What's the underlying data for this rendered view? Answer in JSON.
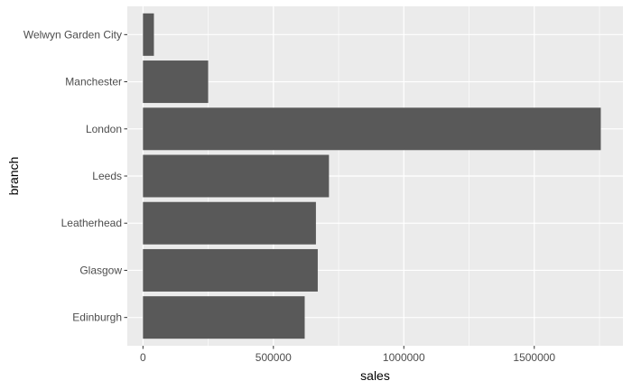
{
  "chart_data": {
    "type": "bar",
    "orientation": "horizontal",
    "categories": [
      "Edinburgh",
      "Glasgow",
      "Leatherhead",
      "Leeds",
      "London",
      "Manchester",
      "Welwyn Garden City"
    ],
    "values": [
      620000,
      670000,
      663000,
      713000,
      1755000,
      250000,
      42000
    ],
    "xlabel": "sales",
    "ylabel": "branch",
    "xlim": [
      -60000,
      1840000
    ],
    "x_ticks": [
      0,
      500000,
      1000000,
      1500000
    ],
    "x_tick_labels": [
      "0",
      "500000",
      "1000000",
      "1500000"
    ],
    "grid": true,
    "legend": "none"
  },
  "colors": {
    "panel_background": "#EBEBEB",
    "gridline": "#FFFFFF",
    "bar_fill": "#595959",
    "tick_text": "#4D4D4D",
    "title_text": "#000000"
  }
}
